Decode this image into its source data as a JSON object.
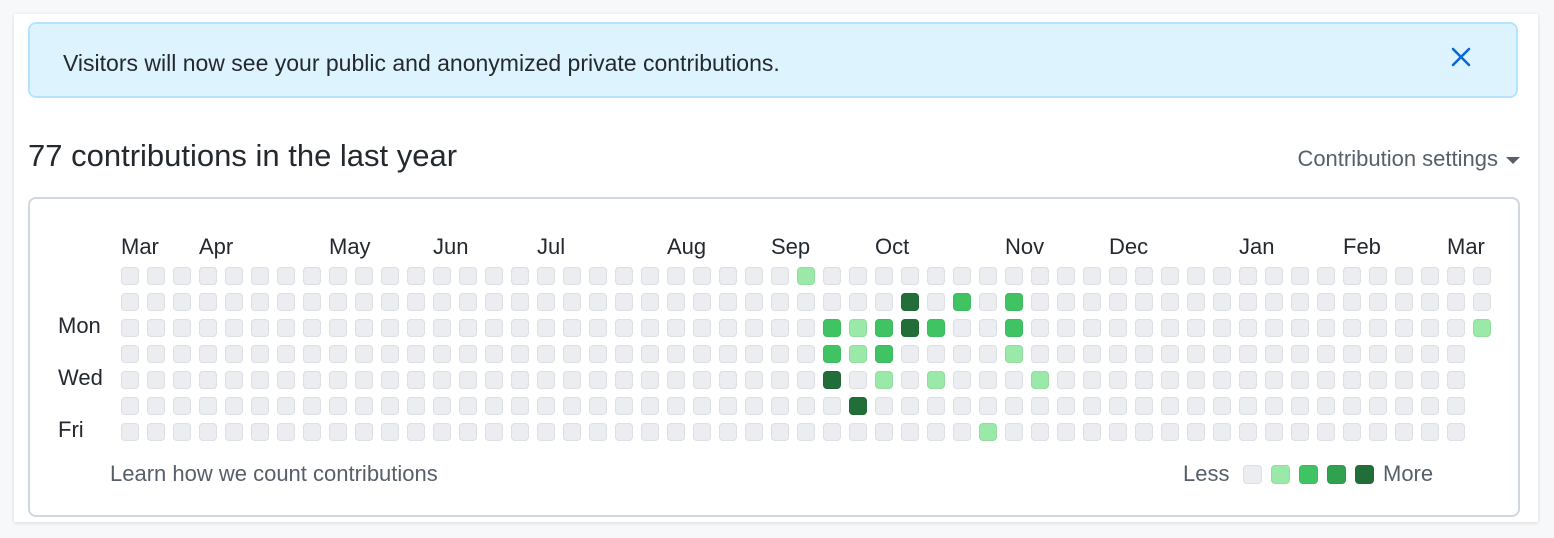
{
  "flash": {
    "message": "Visitors will now see your public and anonymized private contributions.",
    "close_icon": "close-icon"
  },
  "summary": {
    "heading": "77 contributions in the last year",
    "settings_label": "Contribution settings",
    "settings_icon": "caret-down-icon"
  },
  "graph": {
    "months": [
      {
        "label": "Mar",
        "week": 0
      },
      {
        "label": "Apr",
        "week": 3
      },
      {
        "label": "May",
        "week": 8
      },
      {
        "label": "Jun",
        "week": 12
      },
      {
        "label": "Jul",
        "week": 16
      },
      {
        "label": "Aug",
        "week": 21
      },
      {
        "label": "Sep",
        "week": 25
      },
      {
        "label": "Oct",
        "week": 29
      },
      {
        "label": "Nov",
        "week": 34
      },
      {
        "label": "Dec",
        "week": 38
      },
      {
        "label": "Jan",
        "week": 43
      },
      {
        "label": "Feb",
        "week": 47
      },
      {
        "label": "Mar",
        "week": 51
      }
    ],
    "day_labels": [
      {
        "label": "Mon",
        "day": 1
      },
      {
        "label": "Wed",
        "day": 3
      },
      {
        "label": "Fri",
        "day": 5
      }
    ],
    "weeks": 53,
    "last_week_days": 3,
    "levels": [
      {
        "week": 26,
        "day": 0,
        "level": 1
      },
      {
        "week": 27,
        "day": 2,
        "level": 2
      },
      {
        "week": 27,
        "day": 3,
        "level": 2
      },
      {
        "week": 27,
        "day": 4,
        "level": 4
      },
      {
        "week": 28,
        "day": 2,
        "level": 1
      },
      {
        "week": 28,
        "day": 3,
        "level": 1
      },
      {
        "week": 28,
        "day": 5,
        "level": 4
      },
      {
        "week": 29,
        "day": 2,
        "level": 2
      },
      {
        "week": 29,
        "day": 3,
        "level": 2
      },
      {
        "week": 29,
        "day": 4,
        "level": 1
      },
      {
        "week": 30,
        "day": 1,
        "level": 4
      },
      {
        "week": 30,
        "day": 2,
        "level": 4
      },
      {
        "week": 31,
        "day": 2,
        "level": 2
      },
      {
        "week": 31,
        "day": 4,
        "level": 1
      },
      {
        "week": 32,
        "day": 1,
        "level": 2
      },
      {
        "week": 33,
        "day": 6,
        "level": 1
      },
      {
        "week": 34,
        "day": 1,
        "level": 2
      },
      {
        "week": 34,
        "day": 2,
        "level": 2
      },
      {
        "week": 34,
        "day": 3,
        "level": 1
      },
      {
        "week": 35,
        "day": 4,
        "level": 1
      },
      {
        "week": 52,
        "day": 2,
        "level": 1
      }
    ],
    "colors": [
      "#ebedf0",
      "#9be9a8",
      "#40c463",
      "#30a14e",
      "#216e39"
    ]
  },
  "footer": {
    "learn_link": "Learn how we count contributions",
    "legend_less": "Less",
    "legend_more": "More"
  }
}
